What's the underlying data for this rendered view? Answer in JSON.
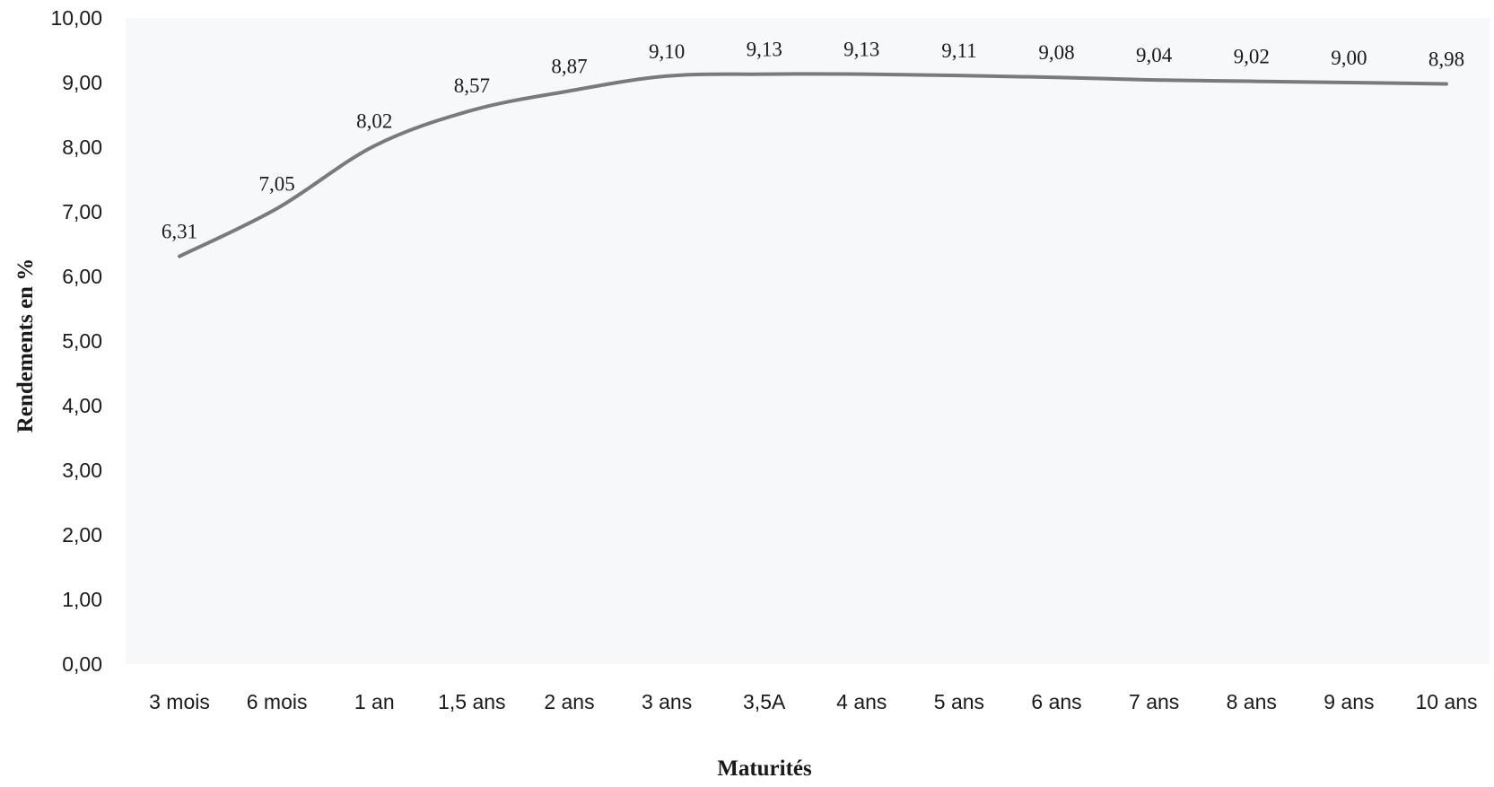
{
  "chart_data": {
    "type": "line",
    "title": "",
    "xlabel": "Maturités",
    "ylabel": "Rendements en %",
    "ylim": [
      0,
      10
    ],
    "y_ticks": [
      "0,00",
      "1,00",
      "2,00",
      "3,00",
      "4,00",
      "5,00",
      "6,00",
      "7,00",
      "8,00",
      "9,00",
      "10,00"
    ],
    "categories": [
      "3 mois",
      "6 mois",
      "1 an",
      "1,5 ans",
      "2 ans",
      "3 ans",
      "3,5A",
      "4 ans",
      "5 ans",
      "6 ans",
      "7 ans",
      "8 ans",
      "9 ans",
      "10 ans"
    ],
    "values": [
      6.31,
      7.05,
      8.02,
      8.57,
      8.87,
      9.1,
      9.13,
      9.13,
      9.11,
      9.08,
      9.04,
      9.02,
      9.0,
      8.98
    ],
    "data_labels": [
      "6,31",
      "7,05",
      "8,02",
      "8,57",
      "8,87",
      "9,10",
      "9,13",
      "9,13",
      "9,11",
      "9,08",
      "9,04",
      "9,02",
      "9,00",
      "8,98"
    ],
    "grid": false,
    "legend": "none",
    "line_color": "#7a7a7a",
    "plot_background": "#f7f8fa"
  }
}
